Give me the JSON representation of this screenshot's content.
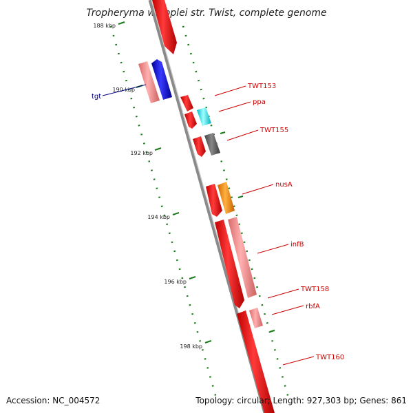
{
  "title": "Tropheryma whipplei str. Twist, complete genome",
  "footer": {
    "accession": "Accession: NC_004572",
    "summary": "Topology: circular; Length: 927,303 bp; Genes: 861"
  },
  "kbp_labels": [
    "188 kbp",
    "190 kbp",
    "192 kbp",
    "194 kbp",
    "196 kbp",
    "198 kbp"
  ],
  "gene_labels": {
    "tgt": "tgt",
    "twt153": "TWT153",
    "ppa": "ppa",
    "twt155": "TWT155",
    "nusa": "nusA",
    "infb": "infB",
    "twt158": "TWT158",
    "rbfa": "rbfA",
    "twt160": "TWT160"
  },
  "colors": {
    "backbone": "#888888",
    "tick": "#1a7a1a",
    "cds": "#ff0000",
    "rrna_like": "#f08080",
    "trna": "#0000ff",
    "cyan_gene": "#00ffff",
    "gray_gene": "#666666",
    "orange_gene": "#ff8c00",
    "label": "#cc0000",
    "label_blue": "#000080"
  }
}
